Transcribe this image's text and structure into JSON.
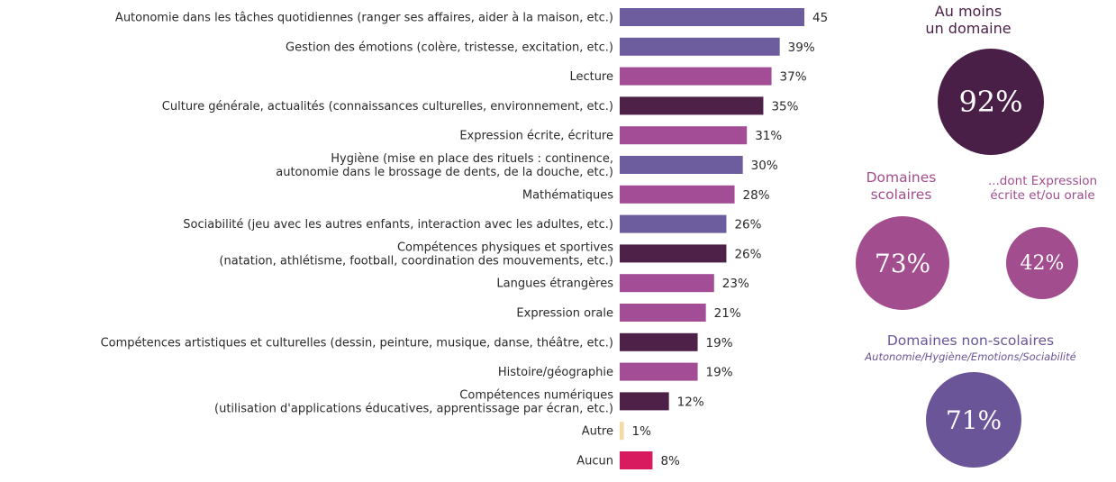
{
  "chart_data": {
    "type": "bar",
    "orientation": "horizontal",
    "categories": [
      [
        "Autonomie dans les tâches quotidiennes (ranger ses affaires, aider à la maison, etc.)"
      ],
      [
        "Gestion des émotions (colère, tristesse, excitation, etc.)"
      ],
      [
        "Lecture"
      ],
      [
        "Culture générale, actualités (connaissances culturelles, environnement, etc.)"
      ],
      [
        "Expression écrite, écriture"
      ],
      [
        "Hygiène (mise en place des rituels : continence,",
        "autonomie dans le brossage de dents, de la douche, etc.)"
      ],
      [
        "Mathématiques"
      ],
      [
        "Sociabilité (jeu avec les autres enfants, interaction avec les adultes, etc.)"
      ],
      [
        "Compétences physiques et sportives",
        "(natation, athlétisme, football, coordination des mouvements, etc.)"
      ],
      [
        "Langues étrangères"
      ],
      [
        "Expression orale"
      ],
      [
        "Compétences artistiques et culturelles (dessin, peinture, musique, danse, théâtre, etc.)"
      ],
      [
        "Histoire/géographie"
      ],
      [
        "Compétences numériques",
        "(utilisation d'applications éducatives, apprentissage par écran, etc.)"
      ],
      [
        "Autre"
      ],
      [
        "Aucun"
      ]
    ],
    "values": [
      45,
      39,
      37,
      35,
      31,
      30,
      28,
      26,
      26,
      23,
      21,
      19,
      19,
      12,
      1,
      8
    ],
    "value_labels": [
      "45%",
      "39%",
      "37%",
      "35%",
      "31%",
      "30%",
      "28%",
      "26%",
      "26%",
      "23%",
      "21%",
      "19%",
      "19%",
      "12%",
      "1%",
      "8%"
    ],
    "colors": [
      "#6d5c9e",
      "#6d5c9e",
      "#a24d96",
      "#4e2149",
      "#a24d96",
      "#6d5c9e",
      "#a24d96",
      "#6d5c9e",
      "#4e2149",
      "#a24d96",
      "#a24d96",
      "#4e2149",
      "#a24d96",
      "#4e2149",
      "#f3d9a3",
      "#d81b5e"
    ],
    "unit": "%",
    "xlim": [
      0,
      50
    ],
    "grid": false,
    "legend": "none"
  },
  "summary": {
    "total": {
      "title_lines": [
        "Au moins",
        "un domaine"
      ],
      "value": "92%",
      "pct": 92,
      "color": "#4a1f47"
    },
    "scolaires": {
      "title_lines": [
        "Domaines",
        "scolaires"
      ],
      "value": "73%",
      "pct": 73,
      "color": "#a24d8e"
    },
    "expression": {
      "title_lines": [
        "...dont Expression",
        "écrite et/ou orale"
      ],
      "value": "42%",
      "pct": 42,
      "color": "#a24d8e"
    },
    "non_scolaires": {
      "title": "Domaines non-scolaires",
      "subtitle": "Autonomie/Hygiène/Emotions/Sociabilité",
      "value": "71%",
      "pct": 71,
      "color": "#6b5599"
    }
  }
}
